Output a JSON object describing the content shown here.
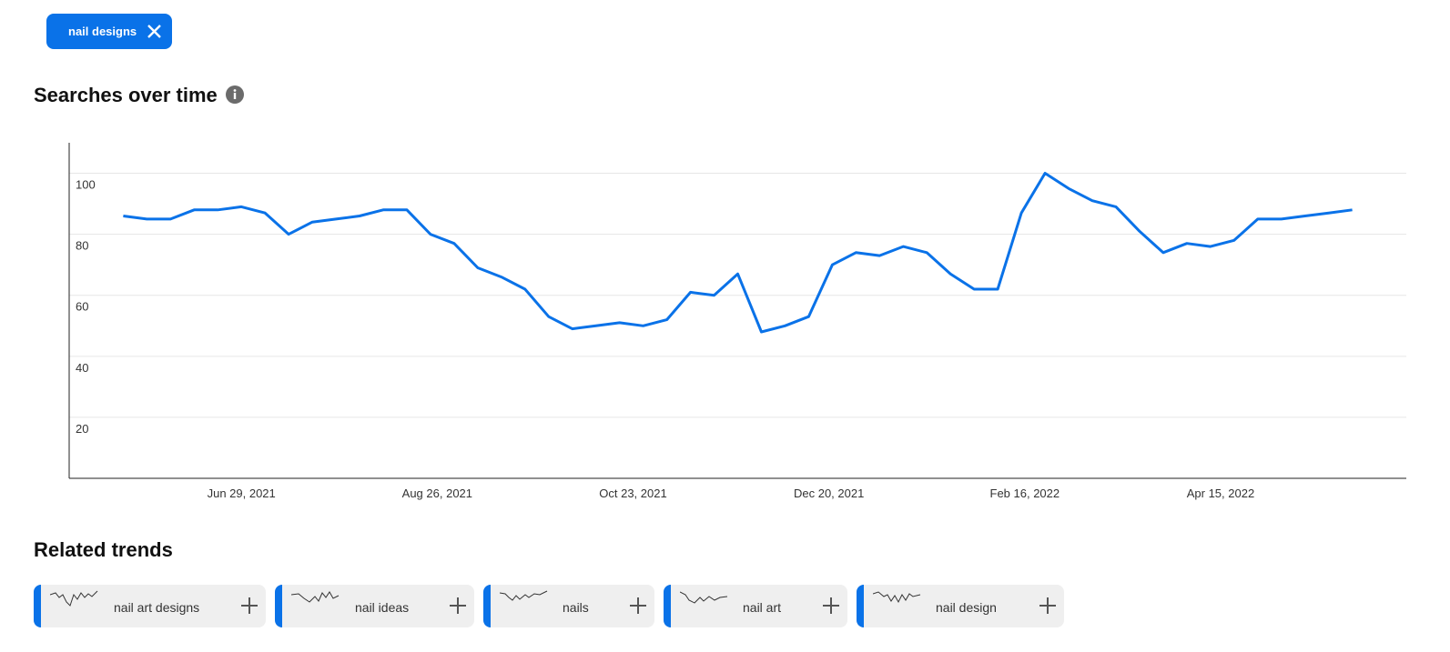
{
  "filter_chip": {
    "label": "nail designs"
  },
  "chart_data": {
    "type": "line",
    "title": "Searches over time",
    "color": "#0a72e8",
    "grid": true,
    "x": [
      "2021-05-25",
      "2021-06-01",
      "2021-06-08",
      "2021-06-15",
      "2021-06-22",
      "2021-06-29",
      "2021-07-06",
      "2021-07-13",
      "2021-07-20",
      "2021-07-27",
      "2021-08-03",
      "2021-08-10",
      "2021-08-17",
      "2021-08-24",
      "2021-08-31",
      "2021-09-07",
      "2021-09-14",
      "2021-09-21",
      "2021-09-28",
      "2021-10-05",
      "2021-10-12",
      "2021-10-19",
      "2021-10-26",
      "2021-11-02",
      "2021-11-09",
      "2021-11-16",
      "2021-11-23",
      "2021-11-30",
      "2021-12-07",
      "2021-12-14",
      "2021-12-21",
      "2021-12-28",
      "2022-01-04",
      "2022-01-11",
      "2022-01-18",
      "2022-01-25",
      "2022-02-01",
      "2022-02-08",
      "2022-02-15",
      "2022-02-22",
      "2022-03-01",
      "2022-03-08",
      "2022-03-15",
      "2022-03-22",
      "2022-03-29",
      "2022-04-05",
      "2022-04-12",
      "2022-04-19",
      "2022-04-26",
      "2022-05-03",
      "2022-05-10",
      "2022-05-17",
      "2022-05-24"
    ],
    "values": [
      86,
      85,
      85,
      88,
      88,
      89,
      87,
      80,
      84,
      85,
      86,
      88,
      88,
      80,
      77,
      69,
      66,
      62,
      53,
      49,
      50,
      51,
      50,
      52,
      61,
      60,
      67,
      48,
      50,
      53,
      70,
      74,
      73,
      76,
      74,
      67,
      62,
      62,
      87,
      100,
      95,
      91,
      89,
      81,
      74,
      77,
      76,
      78,
      85,
      85,
      86,
      87,
      88
    ],
    "xlim": [
      "2021-05-09",
      "2022-06-09"
    ],
    "xticks": [
      {
        "value": "2021-06-29",
        "label": "Jun 29, 2021"
      },
      {
        "value": "2021-08-26",
        "label": "Aug 26, 2021"
      },
      {
        "value": "2021-10-23",
        "label": "Oct 23, 2021"
      },
      {
        "value": "2021-12-20",
        "label": "Dec 20, 2021"
      },
      {
        "value": "2022-02-16",
        "label": "Feb 16, 2022"
      },
      {
        "value": "2022-04-15",
        "label": "Apr 15, 2022"
      }
    ],
    "ylim": [
      0,
      110
    ],
    "yticks": [
      20,
      40,
      60,
      80,
      100
    ]
  },
  "related_trends": {
    "title": "Related trends",
    "items": [
      "nail art designs",
      "nail ideas",
      "nails",
      "nail art",
      "nail design"
    ]
  }
}
